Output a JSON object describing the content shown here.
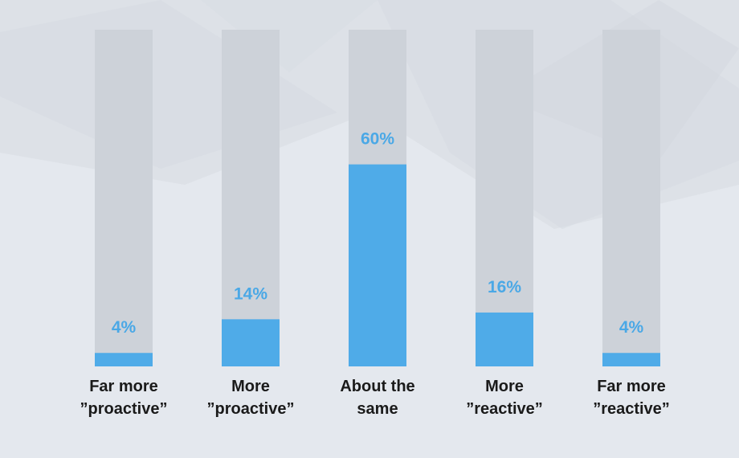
{
  "colors": {
    "background": "#e4e8ee",
    "track": "#cdd2d9",
    "bar": "#4fabe8",
    "value_label": "#4aa8e6",
    "category_label": "#1a1a1a"
  },
  "chart_data": {
    "type": "bar",
    "categories": [
      [
        "Far more",
        "”proactive”"
      ],
      [
        "More",
        "”proactive”"
      ],
      [
        "About the",
        "same"
      ],
      [
        "More",
        "”reactive”"
      ],
      [
        "Far more",
        "”reactive”"
      ]
    ],
    "values": [
      4,
      14,
      60,
      16,
      4
    ],
    "value_labels": [
      "4%",
      "14%",
      "60%",
      "16%",
      "4%"
    ],
    "ylim": [
      0,
      100
    ],
    "grid": false,
    "legend": "none"
  }
}
